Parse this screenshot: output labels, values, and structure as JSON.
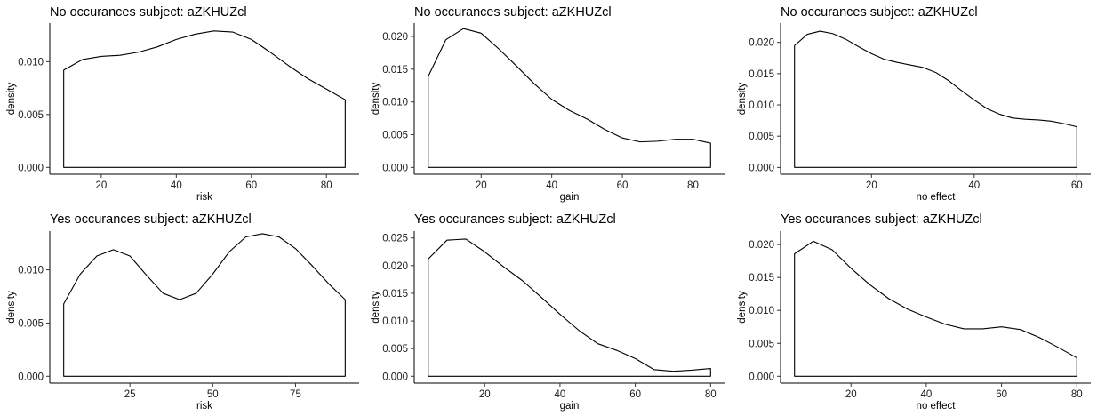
{
  "chart_data": [
    {
      "type": "area",
      "title": "No occurances subject:  aZKHUZcl",
      "xlabel": "risk",
      "ylabel": "density",
      "xlim": [
        10,
        85
      ],
      "ylim": [
        0,
        0.013
      ],
      "xticks": [
        20,
        40,
        60,
        80
      ],
      "yticks": [
        0.0,
        0.005,
        0.01
      ],
      "ytick_labels": [
        "0.000",
        "0.005",
        "0.010"
      ],
      "x": [
        10,
        15,
        20,
        25,
        30,
        35,
        40,
        45,
        50,
        55,
        60,
        65,
        70,
        75,
        80,
        85
      ],
      "y": [
        0.0092,
        0.0102,
        0.0105,
        0.0106,
        0.0109,
        0.0114,
        0.0121,
        0.0126,
        0.0129,
        0.0128,
        0.0121,
        0.0109,
        0.0096,
        0.0084,
        0.0074,
        0.0064
      ]
    },
    {
      "type": "area",
      "title": "No occurances subject:  aZKHUZcl",
      "xlabel": "gain",
      "ylabel": "density",
      "xlim": [
        5,
        85
      ],
      "ylim": [
        0,
        0.021
      ],
      "xticks": [
        20,
        40,
        60,
        80
      ],
      "yticks": [
        0.0,
        0.005,
        0.01,
        0.015,
        0.02
      ],
      "ytick_labels": [
        "0.000",
        "0.005",
        "0.010",
        "0.015",
        "0.020"
      ],
      "x": [
        5,
        10,
        15,
        20,
        25,
        30,
        35,
        40,
        45,
        50,
        55,
        60,
        65,
        70,
        75,
        80,
        85
      ],
      "y": [
        0.0139,
        0.0195,
        0.0212,
        0.0205,
        0.0181,
        0.0155,
        0.0128,
        0.0104,
        0.0087,
        0.0074,
        0.0058,
        0.0045,
        0.0039,
        0.004,
        0.0043,
        0.0043,
        0.0037
      ]
    },
    {
      "type": "area",
      "title": "No occurances subject:  aZKHUZcl",
      "xlabel": "no effect",
      "ylabel": "density",
      "xlim": [
        5,
        60
      ],
      "ylim": [
        0,
        0.022
      ],
      "xticks": [
        20,
        40,
        60
      ],
      "yticks": [
        0.0,
        0.005,
        0.01,
        0.015,
        0.02
      ],
      "ytick_labels": [
        "0.000",
        "0.005",
        "0.010",
        "0.015",
        "0.020"
      ],
      "x": [
        5,
        7.5,
        10,
        12.5,
        15,
        17.5,
        20,
        22.5,
        25,
        27.5,
        30,
        32.5,
        35,
        37.5,
        40,
        42.5,
        45,
        47.5,
        50,
        52.5,
        55,
        57.5,
        60
      ],
      "y": [
        0.0195,
        0.0213,
        0.0218,
        0.0214,
        0.0205,
        0.0193,
        0.0182,
        0.0173,
        0.0168,
        0.0164,
        0.016,
        0.0152,
        0.0139,
        0.0123,
        0.0108,
        0.0094,
        0.0085,
        0.0079,
        0.0077,
        0.0076,
        0.0074,
        0.007,
        0.0065
      ]
    },
    {
      "type": "area",
      "title": "Yes occurances subject:  aZKHUZcl",
      "xlabel": "risk",
      "ylabel": "density",
      "xlim": [
        5,
        90
      ],
      "ylim": [
        0,
        0.013
      ],
      "xticks": [
        25,
        50,
        75
      ],
      "yticks": [
        0.0,
        0.005,
        0.01
      ],
      "ytick_labels": [
        "0.000",
        "0.005",
        "0.010"
      ],
      "x": [
        5,
        10,
        15,
        20,
        25,
        30,
        35,
        40,
        45,
        50,
        55,
        60,
        65,
        70,
        75,
        80,
        85,
        90
      ],
      "y": [
        0.0068,
        0.0096,
        0.0113,
        0.0119,
        0.0113,
        0.0095,
        0.0078,
        0.0072,
        0.0078,
        0.0096,
        0.0117,
        0.0131,
        0.0134,
        0.0131,
        0.012,
        0.0104,
        0.0087,
        0.0072
      ]
    },
    {
      "type": "area",
      "title": "Yes occurances subject:  aZKHUZcl",
      "xlabel": "gain",
      "ylabel": "density",
      "xlim": [
        5,
        80
      ],
      "ylim": [
        0,
        0.025
      ],
      "xticks": [
        20,
        40,
        60,
        80
      ],
      "yticks": [
        0.0,
        0.005,
        0.01,
        0.015,
        0.02,
        0.025
      ],
      "ytick_labels": [
        "0.000",
        "0.005",
        "0.010",
        "0.015",
        "0.020",
        "0.025"
      ],
      "x": [
        5,
        10,
        15,
        20,
        25,
        30,
        35,
        40,
        45,
        50,
        55,
        60,
        65,
        70,
        75,
        80
      ],
      "y": [
        0.0212,
        0.0246,
        0.0248,
        0.0225,
        0.0198,
        0.0173,
        0.0143,
        0.0112,
        0.0083,
        0.0059,
        0.0047,
        0.0032,
        0.0012,
        0.0009,
        0.0011,
        0.0014
      ]
    },
    {
      "type": "area",
      "title": "Yes occurances subject:  aZKHUZcl",
      "xlabel": "no effect",
      "ylabel": "density",
      "xlim": [
        5,
        80
      ],
      "ylim": [
        0,
        0.021
      ],
      "xticks": [
        20,
        40,
        60,
        80
      ],
      "yticks": [
        0.0,
        0.005,
        0.01,
        0.015,
        0.02
      ],
      "ytick_labels": [
        "0.000",
        "0.005",
        "0.010",
        "0.015",
        "0.020"
      ],
      "x": [
        5,
        10,
        15,
        20,
        25,
        30,
        35,
        40,
        45,
        50,
        55,
        60,
        65,
        70,
        75,
        80
      ],
      "y": [
        0.0186,
        0.0205,
        0.0192,
        0.0164,
        0.0139,
        0.0118,
        0.0102,
        0.009,
        0.0079,
        0.0072,
        0.0072,
        0.0075,
        0.0071,
        0.0059,
        0.0044,
        0.0028
      ]
    }
  ]
}
